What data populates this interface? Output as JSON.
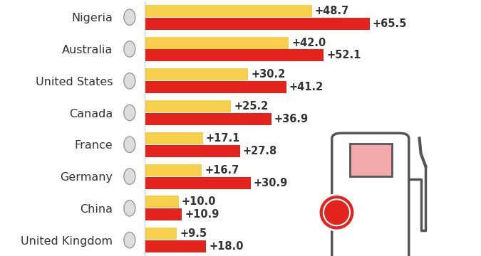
{
  "chart_data": {
    "type": "bar",
    "orientation": "horizontal",
    "categories": [
      "Nigeria",
      "Australia",
      "United States",
      "Canada",
      "France",
      "Germany",
      "China",
      "United Kingdom"
    ],
    "series": [
      {
        "color": "#f6d04d",
        "values": [
          48.7,
          42.0,
          30.2,
          25.2,
          17.1,
          16.7,
          10.0,
          9.5
        ],
        "value_labels": [
          "+48.7",
          "+42.0",
          "+30.2",
          "+25.2",
          "+17.1",
          "+16.7",
          "+10.0",
          "+9.5"
        ]
      },
      {
        "color": "#e3231d",
        "values": [
          65.5,
          52.1,
          41.2,
          36.9,
          27.8,
          30.9,
          10.9,
          18.0
        ],
        "value_labels": [
          "+65.5",
          "+52.1",
          "+41.2",
          "+36.9",
          "+27.8",
          "+30.9",
          "+10.9",
          "+18.0"
        ]
      }
    ],
    "xlim": [
      0,
      95
    ],
    "xticks": [],
    "data_labels": true,
    "tick_labels": "y",
    "grid": false
  }
}
